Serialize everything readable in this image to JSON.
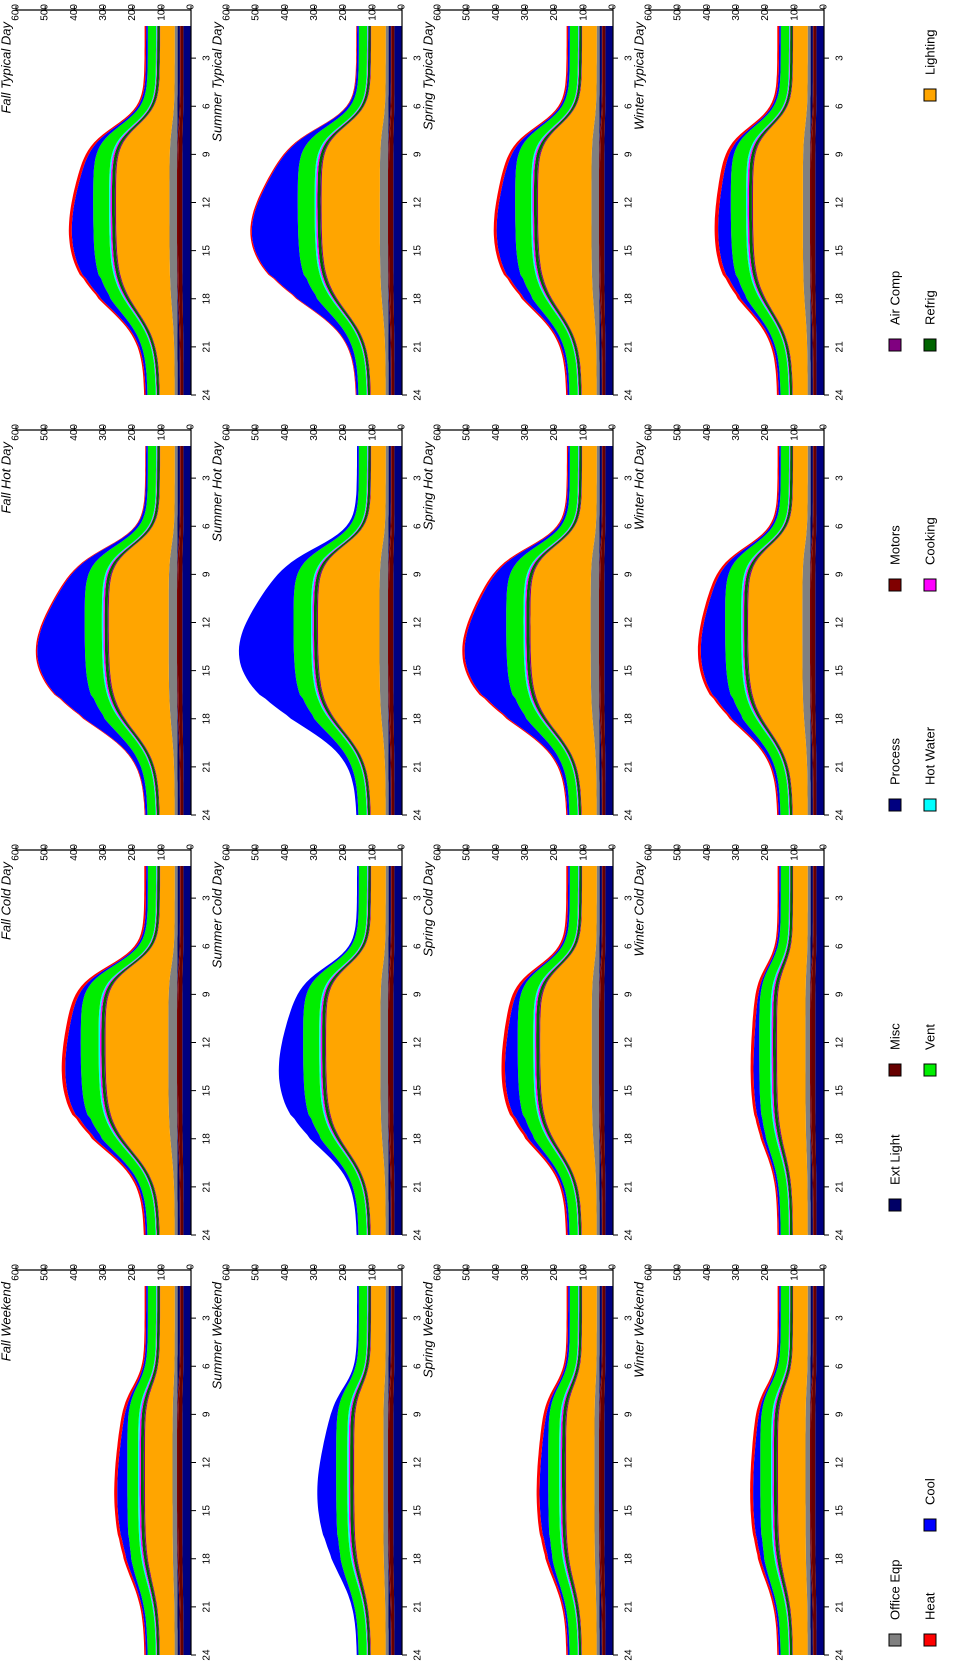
{
  "orientation": "rotated-90-ccw",
  "chart_data": {
    "type": "area",
    "stacked": true,
    "x_ticks": [
      3,
      6,
      9,
      12,
      15,
      18,
      21,
      24
    ],
    "x_range": [
      0,
      24
    ],
    "y_ticks": [
      0,
      100,
      200,
      300,
      400,
      500,
      600
    ],
    "y_range": [
      0,
      600
    ],
    "grid": false,
    "legend_position": "bottom",
    "end_uses": [
      {
        "name": "Heat",
        "color": "#ff0000"
      },
      {
        "name": "Cool",
        "color": "#0000ff"
      },
      {
        "name": "Vent",
        "color": "#00ee00"
      },
      {
        "name": "Hot Water",
        "color": "#00ffff"
      },
      {
        "name": "Cooking",
        "color": "#ff00ff"
      },
      {
        "name": "Refrig",
        "color": "#006400"
      },
      {
        "name": "Lighting",
        "color": "#ffa500"
      },
      {
        "name": "Office Eqp",
        "color": "#808080"
      },
      {
        "name": "Ext Light",
        "color": "#000066"
      },
      {
        "name": "Misc",
        "color": "#660000"
      },
      {
        "name": "Process",
        "color": "#000080"
      },
      {
        "name": "Motors",
        "color": "#800000"
      },
      {
        "name": "Air Comp",
        "color": "#800080"
      }
    ],
    "panels": [
      {
        "title": "Winter Typical Day",
        "season": "Winter",
        "day_type": "Typical Day",
        "peak_total": 355,
        "peak_cool": 45,
        "peak_heat": 12
      },
      {
        "title": "Winter Hot Day",
        "season": "Winter",
        "day_type": "Hot Day",
        "peak_total": 420,
        "peak_cool": 85,
        "peak_heat": 10
      },
      {
        "title": "Winter Cold Day",
        "season": "Winter",
        "day_type": "Cold Day",
        "peak_total": 195,
        "peak_cool": 20,
        "peak_heat": 10
      },
      {
        "title": "Winter Weekend",
        "season": "Winter",
        "day_type": "Weekend",
        "peak_total": 195,
        "peak_cool": 25,
        "peak_heat": 10
      },
      {
        "title": "Spring Typical Day",
        "season": "Spring",
        "day_type": "Typical Day",
        "peak_total": 395,
        "peak_cool": 65,
        "peak_heat": 10
      },
      {
        "title": "Spring Hot Day",
        "season": "Spring",
        "day_type": "Hot Day",
        "peak_total": 515,
        "peak_cool": 145,
        "peak_heat": 8
      },
      {
        "title": "Spring Cold Day",
        "season": "Spring",
        "day_type": "Cold Day",
        "peak_total": 365,
        "peak_cool": 45,
        "peak_heat": 12
      },
      {
        "title": "Spring Weekend",
        "season": "Spring",
        "day_type": "Weekend",
        "peak_total": 205,
        "peak_cool": 30,
        "peak_heat": 10
      },
      {
        "title": "Summer Typical Day",
        "season": "Summer",
        "day_type": "Typical Day",
        "peak_total": 515,
        "peak_cool": 160,
        "peak_heat": 5
      },
      {
        "title": "Summer Hot Day",
        "season": "Summer",
        "day_type": "Hot Day",
        "peak_total": 560,
        "peak_cool": 190,
        "peak_heat": 0
      },
      {
        "title": "Summer Cold Day",
        "season": "Summer",
        "day_type": "Cold Day",
        "peak_total": 410,
        "peak_cool": 85,
        "peak_heat": 0
      },
      {
        "title": "Summer Weekend",
        "season": "Summer",
        "day_type": "Weekend",
        "peak_total": 235,
        "peak_cool": 65,
        "peak_heat": 0
      },
      {
        "title": "Fall Typical Day",
        "season": "Fall",
        "day_type": "Typical Day",
        "peak_total": 405,
        "peak_cool": 75,
        "peak_heat": 10
      },
      {
        "title": "Fall Hot Day",
        "season": "Fall",
        "day_type": "Hot Day",
        "peak_total": 530,
        "peak_cool": 165,
        "peak_heat": 5
      },
      {
        "title": "Fall Cold Day",
        "season": "Fall",
        "day_type": "Cold Day",
        "peak_total": 445,
        "peak_cool": 55,
        "peak_heat": 12
      },
      {
        "title": "Fall Weekend",
        "season": "Fall",
        "day_type": "Weekend",
        "peak_total": 205,
        "peak_cool": 35,
        "peak_heat": 10
      }
    ]
  }
}
